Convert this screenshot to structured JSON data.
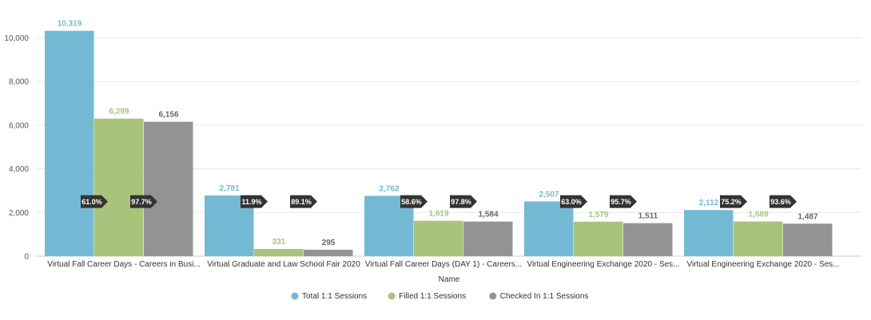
{
  "chart_data": {
    "type": "bar",
    "title": "",
    "xlabel": "Name",
    "ylabel": "",
    "ylim": [
      0,
      11000
    ],
    "yticks": [
      0,
      2000,
      4000,
      6000,
      8000,
      10000
    ],
    "ytick_labels": [
      "0",
      "2,000",
      "4,000",
      "6,000",
      "8,000",
      "10,000"
    ],
    "grid": true,
    "legend_position": "bottom-center",
    "categories": [
      "Virtual Fall Career Days - Careers in Busi...",
      "Virtual Graduate and Law School Fair 2020",
      "Virtual Fall Career Days (DAY 1) - Careers...",
      "Virtual Engineering Exchange 2020 - Ses...",
      "Virtual Engineering Exchange 2020 - Ses..."
    ],
    "series": [
      {
        "name": "Total 1:1 Sessions",
        "color": "#74b9d3",
        "values": [
          10319,
          2781,
          2762,
          2507,
          2112
        ],
        "labels": [
          "10,319",
          "2,781",
          "2,762",
          "2,507",
          "2,112"
        ]
      },
      {
        "name": "Filled 1:1 Sessions",
        "color": "#a9c37a",
        "values": [
          6299,
          331,
          1619,
          1579,
          1589
        ],
        "labels": [
          "6,299",
          "331",
          "1,619",
          "1,579",
          "1,589"
        ]
      },
      {
        "name": "Checked In 1:1 Sessions",
        "color": "#939393",
        "values": [
          6156,
          295,
          1584,
          1511,
          1487
        ],
        "labels": [
          "6,156",
          "295",
          "1,584",
          "1,511",
          "1,487"
        ]
      }
    ],
    "conversion_badges": [
      {
        "filled_pct": "61.0%",
        "checked_pct": "97.7%"
      },
      {
        "filled_pct": "11.9%",
        "checked_pct": "89.1%"
      },
      {
        "filled_pct": "58.6%",
        "checked_pct": "97.8%"
      },
      {
        "filled_pct": "63.0%",
        "checked_pct": "95.7%"
      },
      {
        "filled_pct": "75.2%",
        "checked_pct": "93.6%"
      }
    ],
    "badge_value": 2500,
    "badge_color": "#333333"
  }
}
